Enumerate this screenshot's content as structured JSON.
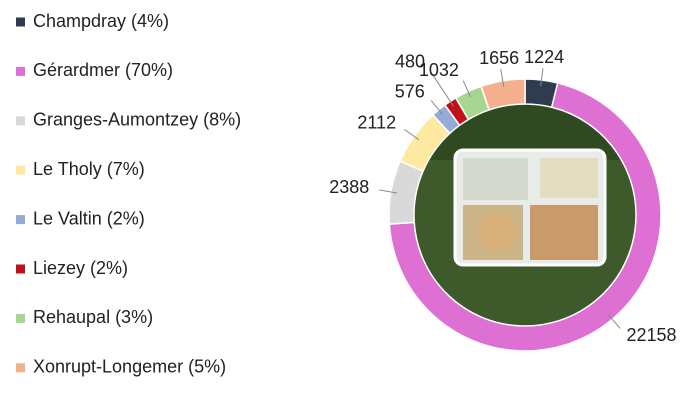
{
  "chart_data": {
    "type": "donut",
    "categories": [
      "Champdray (4%)",
      "Gérardmer (70%)",
      "Granges-Aumontzey (8%)",
      "Le Tholy (7%)",
      "Le Valtin (2%)",
      "Liezey (2%)",
      "Rehaupal (3%)",
      "Xonrupt-Longemer (5%)"
    ],
    "values": [
      1224,
      22158,
      2388,
      2112,
      576,
      480,
      1032,
      1656
    ],
    "colors": [
      "#2f3b4f",
      "#dd70d2",
      "#d9d9d9",
      "#fde9a0",
      "#95acd8",
      "#c0111b",
      "#a6d690",
      "#f4b08c"
    ],
    "legend": "left"
  }
}
